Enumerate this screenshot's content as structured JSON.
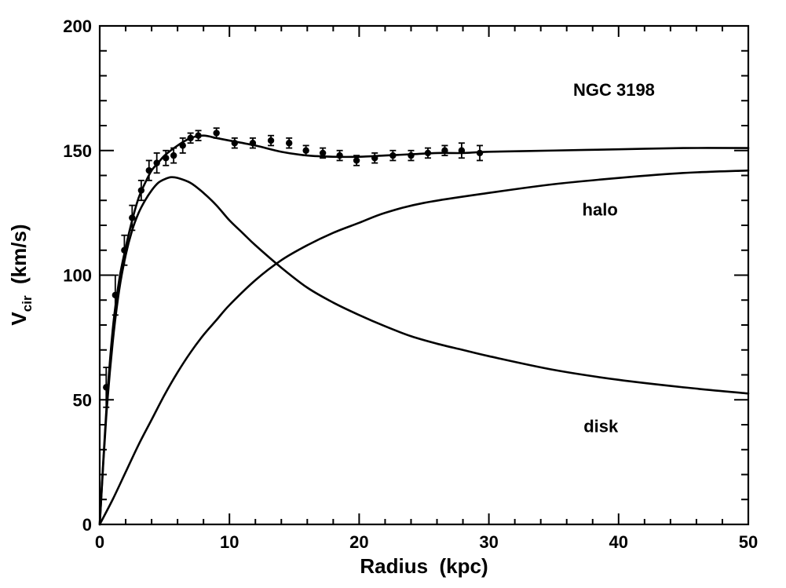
{
  "chart_data": {
    "type": "line",
    "title": "NGC 3198",
    "xlabel": "Radius  (kpc)",
    "ylabel_main": "V",
    "ylabel_sub": "cir",
    "ylabel_rest": "  (km/s)",
    "xlim": [
      0,
      50
    ],
    "ylim": [
      0,
      200
    ],
    "xticks": [
      0,
      10,
      20,
      30,
      40,
      50
    ],
    "yticks": [
      0,
      50,
      100,
      150,
      200
    ],
    "xtick_labels": [
      "0",
      "10",
      "20",
      "30",
      "40",
      "50"
    ],
    "ytick_labels": [
      "0",
      "50",
      "100",
      "150",
      "200"
    ],
    "x_minor_step": 2,
    "y_minor_step": 10,
    "grid": false,
    "annotations": [
      {
        "text": "NGC 3198",
        "x": 36.5,
        "y": 172
      },
      {
        "text": "halo",
        "x": 37.2,
        "y": 124
      },
      {
        "text": "disk",
        "x": 37.3,
        "y": 37
      }
    ],
    "series": [
      {
        "type": "line",
        "x": [
          0,
          0.5,
          1,
          1.5,
          2,
          2.5,
          3,
          3.5,
          4,
          4.5,
          5,
          6,
          7,
          8,
          9,
          10,
          12,
          14,
          16,
          18,
          20,
          22,
          24,
          26,
          28,
          30,
          35,
          40,
          45,
          50
        ],
        "y": [
          0,
          45,
          78,
          98,
          111,
          122,
          131,
          137,
          142,
          145,
          148,
          152,
          155,
          156,
          155,
          154,
          152,
          149.5,
          148,
          147.5,
          147.5,
          148,
          148.5,
          149,
          149,
          149.5,
          150,
          150.5,
          151,
          151
        ]
      },
      {
        "type": "line",
        "x": [
          0,
          0.5,
          1,
          1.5,
          2,
          2.5,
          3,
          3.5,
          4,
          4.5,
          5,
          5.5,
          6,
          7,
          8,
          9,
          10,
          11,
          12,
          14,
          16,
          18,
          20,
          22,
          24,
          26,
          28,
          30,
          35,
          40,
          45,
          50
        ],
        "y": [
          0,
          43,
          73,
          94,
          108,
          118,
          125,
          130,
          134,
          137,
          138.5,
          139.3,
          139,
          137,
          133,
          128,
          122,
          117,
          112,
          103,
          95,
          89,
          84,
          79.5,
          75.5,
          72.5,
          70,
          67.5,
          62,
          58,
          55,
          52.5
        ]
      },
      {
        "type": "line",
        "x": [
          0,
          1,
          2,
          3,
          4,
          5,
          6,
          7,
          8,
          9,
          10,
          12,
          14,
          16,
          18,
          20,
          22,
          25,
          30,
          35,
          40,
          45,
          50
        ],
        "y": [
          0,
          10,
          21,
          32,
          42,
          52,
          61,
          69,
          76,
          82,
          88,
          98,
          106,
          112,
          117,
          121,
          125,
          129,
          133,
          136.5,
          139,
          141,
          142
        ]
      },
      {
        "type": "scatter",
        "x": [
          0.5,
          1.2,
          1.9,
          2.5,
          3.2,
          3.8,
          4.4,
          5.1,
          5.7,
          6.4,
          7.0,
          7.6,
          9.0,
          10.4,
          11.8,
          13.2,
          14.6,
          15.9,
          17.2,
          18.5,
          19.8,
          21.2,
          22.6,
          24.0,
          25.3,
          26.6,
          27.9,
          29.3
        ],
        "y": [
          55,
          92,
          110,
          123,
          134,
          142,
          145,
          147,
          148,
          152,
          155,
          156,
          157,
          153,
          153,
          154,
          153,
          150,
          149,
          148,
          146,
          147,
          148,
          148,
          149,
          150,
          150,
          149
        ],
        "err": [
          8,
          8,
          6,
          5,
          4,
          4,
          4,
          3,
          3,
          3,
          2,
          2,
          2,
          2,
          2,
          2,
          2,
          2,
          2,
          2,
          2,
          2,
          2,
          2,
          2,
          2,
          3,
          3
        ]
      }
    ]
  }
}
